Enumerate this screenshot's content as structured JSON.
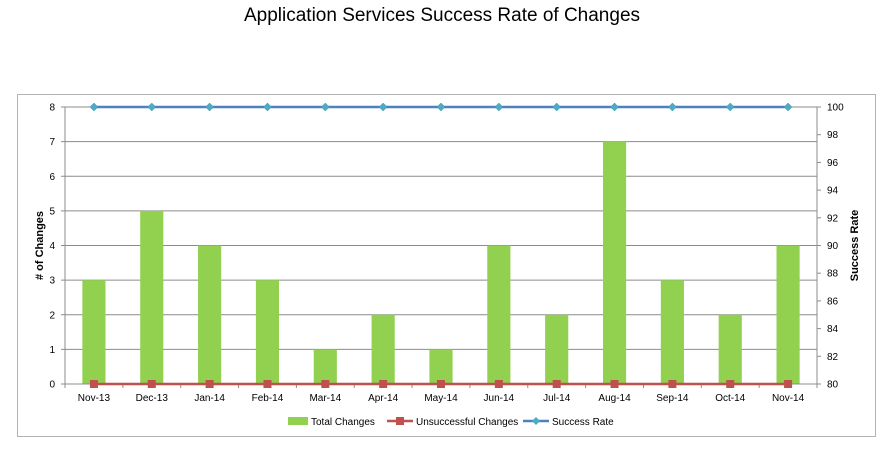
{
  "title": "Application Services Success Rate of Changes",
  "chart_data": {
    "type": "bar",
    "title": "Application Services Success Rate of Changes",
    "categories": [
      "Nov-13",
      "Dec-13",
      "Jan-14",
      "Feb-14",
      "Mar-14",
      "Apr-14",
      "May-14",
      "Jun-14",
      "Jul-14",
      "Aug-14",
      "Sep-14",
      "Oct-14",
      "Nov-14"
    ],
    "ylabel": "# of Changes",
    "y2label": "Success Rate",
    "ylim": [
      0,
      8
    ],
    "yticks": [
      0,
      1,
      2,
      3,
      4,
      5,
      6,
      7,
      8
    ],
    "y2lim": [
      80,
      100
    ],
    "y2ticks": [
      80,
      82,
      84,
      86,
      88,
      90,
      92,
      94,
      96,
      98,
      100
    ],
    "grid": true,
    "legend_position": "bottom",
    "series": [
      {
        "name": "Total Changes",
        "type": "bar",
        "axis": "left",
        "color": "#92d050",
        "values": [
          3,
          5,
          4,
          3,
          1,
          2,
          1,
          4,
          2,
          7,
          3,
          2,
          4
        ]
      },
      {
        "name": "Unsuccessful Changes",
        "type": "line",
        "axis": "left",
        "color": "#c0504d",
        "values": [
          0,
          0,
          0,
          0,
          0,
          0,
          0,
          0,
          0,
          0,
          0,
          0,
          0
        ]
      },
      {
        "name": "Success Rate",
        "type": "line",
        "axis": "right",
        "color": "#4f81bd",
        "values": [
          100,
          100,
          100,
          100,
          100,
          100,
          100,
          100,
          100,
          100,
          100,
          100,
          100
        ]
      }
    ]
  }
}
